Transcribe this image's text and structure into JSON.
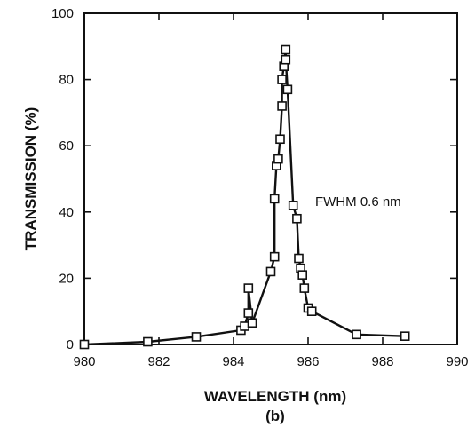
{
  "chart_data": {
    "type": "line",
    "xlabel": "WAVELENGTH (nm)",
    "ylabel": "TRANSMISSION (%)",
    "panel_label": "(b)",
    "annotation": "FWHM 0.6 nm",
    "xlim": [
      980,
      990
    ],
    "ylim": [
      0,
      100
    ],
    "x_ticks": [
      980,
      982,
      984,
      986,
      988,
      990
    ],
    "y_ticks": [
      0,
      20,
      40,
      60,
      80,
      100
    ],
    "grid": false,
    "legend": "none",
    "marker": "square",
    "line_color": "#111111",
    "series": [
      {
        "x": [
          980.0,
          981.7,
          983.0,
          984.2,
          984.3,
          984.4,
          984.4,
          984.5,
          985.0,
          985.1,
          985.1,
          985.15,
          985.2,
          985.25,
          985.3,
          985.3,
          985.35,
          985.4,
          985.4,
          985.45,
          985.6,
          985.7,
          985.75,
          985.8,
          985.85,
          985.9,
          986.0,
          986.1,
          987.3,
          988.6
        ],
        "y": [
          0,
          0.8,
          2.3,
          4.3,
          5.5,
          9.5,
          17,
          6.5,
          22,
          26.5,
          44,
          54,
          56,
          62,
          72,
          80,
          84,
          89,
          86,
          77,
          42,
          38,
          26,
          23,
          21,
          17,
          11,
          10,
          3,
          2.5
        ]
      }
    ]
  }
}
